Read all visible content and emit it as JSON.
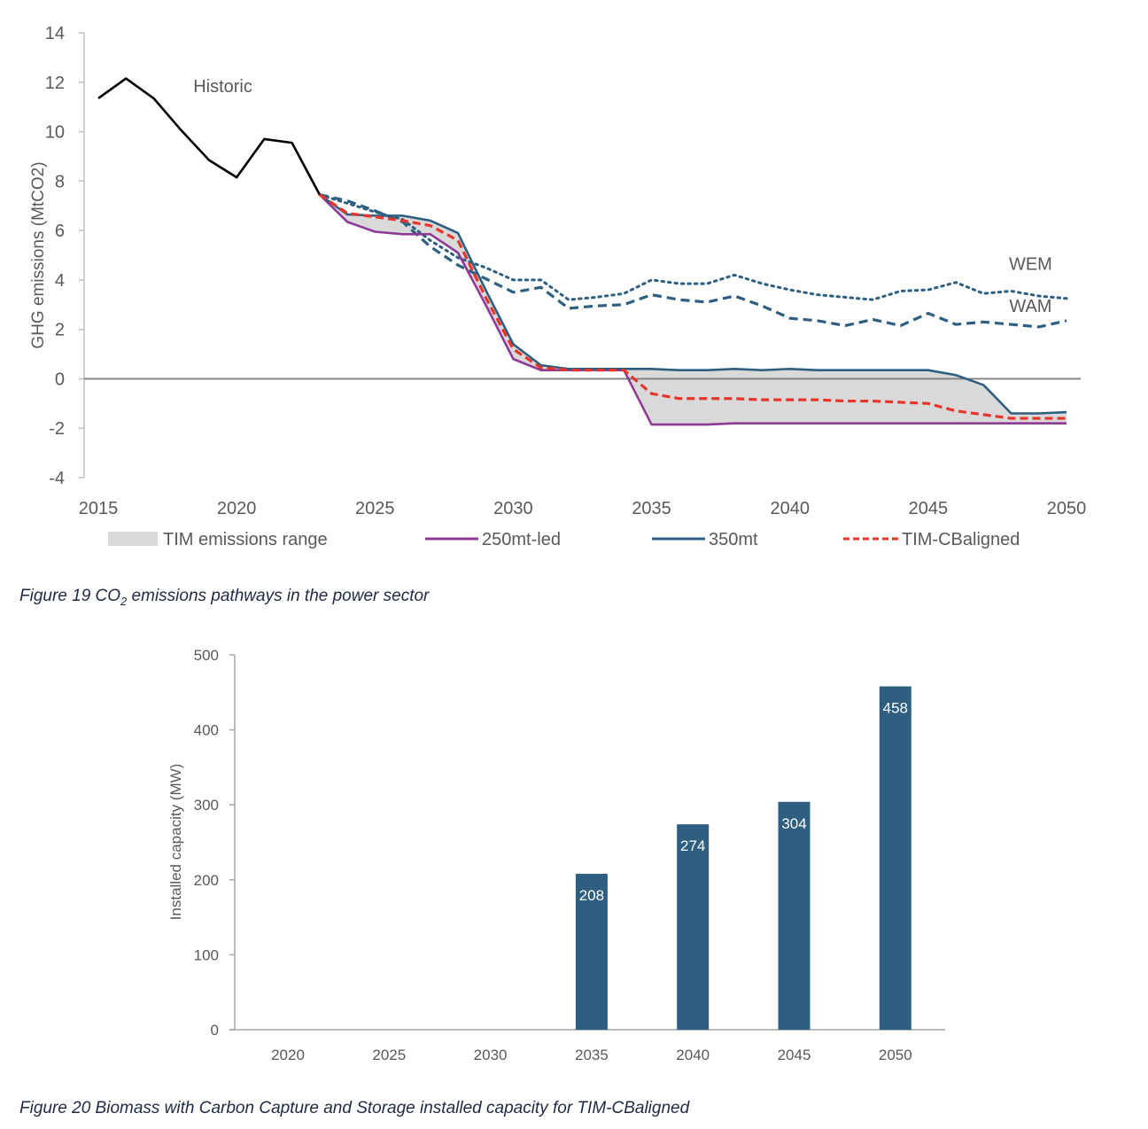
{
  "figure19": {
    "caption_prefix": "Figure 19 CO",
    "caption_sub": "2",
    "caption_suffix": " emissions pathways in the power sector"
  },
  "figure20": {
    "caption": "Figure 20 Biomass with Carbon Capture and Storage installed capacity for TIM-CBaligned"
  },
  "chart_data": [
    {
      "type": "line",
      "title": "",
      "xlabel": "",
      "ylabel": "GHG emissions (MtCO2)",
      "xlim": [
        2015,
        2050
      ],
      "ylim": [
        -4,
        14
      ],
      "x_ticks": [
        2015,
        2020,
        2025,
        2030,
        2035,
        2040,
        2045,
        2050
      ],
      "y_ticks": [
        -4,
        -2,
        0,
        2,
        4,
        6,
        8,
        10,
        12,
        14
      ],
      "grid": false,
      "legend_position": "bottom",
      "annotations": [
        {
          "text": "Historic",
          "x": 2019.5,
          "y": 11.6
        },
        {
          "text": "WEM",
          "x": 2048.7,
          "y": 4.4
        },
        {
          "text": "WAM",
          "x": 2048.7,
          "y": 2.7
        }
      ],
      "colors": {
        "historic": "#000000",
        "range": "#d9d9d9",
        "led250": "#8e3a96",
        "mt350": "#2e5f80",
        "cbaligned": "#e8352a",
        "wem": "#2e5f80",
        "wam": "#2e5f80",
        "axis": "#bfbfbf",
        "zero_line": "#808080",
        "tick_text": "#595959"
      },
      "legend": [
        {
          "key": "range",
          "label": "TIM emissions range",
          "style": "area"
        },
        {
          "key": "led250",
          "label": "250mt-led",
          "style": "solid"
        },
        {
          "key": "mt350",
          "label": "350mt",
          "style": "solid"
        },
        {
          "key": "cbaligned",
          "label": "TIM-CBaligned",
          "style": "dashed"
        }
      ],
      "series": [
        {
          "key": "historic",
          "name": "Historic",
          "style": "solid",
          "x": [
            2015,
            2016,
            2017,
            2018,
            2019,
            2020,
            2021,
            2022,
            2023
          ],
          "values": [
            11.35,
            12.15,
            11.35,
            10.05,
            8.85,
            8.15,
            9.7,
            9.55,
            7.45
          ]
        },
        {
          "key": "led250",
          "name": "250mt-led",
          "style": "solid",
          "x": [
            2023,
            2024,
            2025,
            2026,
            2027,
            2028,
            2029,
            2030,
            2031,
            2032,
            2033,
            2034,
            2035,
            2036,
            2037,
            2038,
            2039,
            2040,
            2041,
            2042,
            2043,
            2044,
            2045,
            2046,
            2047,
            2048,
            2049,
            2050
          ],
          "values": [
            7.45,
            6.35,
            5.95,
            5.85,
            5.85,
            5.1,
            3.0,
            0.8,
            0.35,
            0.35,
            0.35,
            0.35,
            -1.85,
            -1.85,
            -1.85,
            -1.8,
            -1.8,
            -1.8,
            -1.8,
            -1.8,
            -1.8,
            -1.8,
            -1.8,
            -1.8,
            -1.8,
            -1.8,
            -1.8,
            -1.8
          ]
        },
        {
          "key": "mt350",
          "name": "350mt",
          "style": "solid",
          "x": [
            2023,
            2024,
            2025,
            2026,
            2027,
            2028,
            2029,
            2030,
            2031,
            2032,
            2033,
            2034,
            2035,
            2036,
            2037,
            2038,
            2039,
            2040,
            2041,
            2042,
            2043,
            2044,
            2045,
            2046,
            2047,
            2048,
            2049,
            2050
          ],
          "values": [
            7.45,
            6.65,
            6.6,
            6.6,
            6.4,
            5.9,
            3.6,
            1.4,
            0.55,
            0.4,
            0.4,
            0.4,
            0.4,
            0.35,
            0.35,
            0.4,
            0.35,
            0.4,
            0.35,
            0.35,
            0.35,
            0.35,
            0.35,
            0.15,
            -0.25,
            -1.4,
            -1.4,
            -1.35
          ]
        },
        {
          "key": "cbaligned",
          "name": "TIM-CBaligned",
          "style": "dashed",
          "x": [
            2023,
            2024,
            2025,
            2026,
            2027,
            2028,
            2029,
            2030,
            2031,
            2032,
            2033,
            2034,
            2035,
            2036,
            2037,
            2038,
            2039,
            2040,
            2041,
            2042,
            2043,
            2044,
            2045,
            2046,
            2047,
            2048,
            2049,
            2050
          ],
          "values": [
            7.45,
            6.7,
            6.55,
            6.4,
            6.2,
            5.6,
            3.3,
            1.2,
            0.45,
            0.35,
            0.35,
            0.35,
            -0.6,
            -0.8,
            -0.8,
            -0.8,
            -0.85,
            -0.85,
            -0.85,
            -0.9,
            -0.9,
            -0.95,
            -1.0,
            -1.3,
            -1.45,
            -1.6,
            -1.6,
            -1.6
          ]
        },
        {
          "key": "wem",
          "name": "WEM",
          "style": "dotted",
          "x": [
            2023,
            2024,
            2025,
            2026,
            2027,
            2028,
            2029,
            2030,
            2031,
            2032,
            2033,
            2034,
            2035,
            2036,
            2037,
            2038,
            2039,
            2040,
            2041,
            2042,
            2043,
            2044,
            2045,
            2046,
            2047,
            2048,
            2049,
            2050
          ],
          "values": [
            7.45,
            7.1,
            6.75,
            6.45,
            5.6,
            4.9,
            4.5,
            4.0,
            4.0,
            3.2,
            3.3,
            3.45,
            4.0,
            3.85,
            3.85,
            4.2,
            3.85,
            3.6,
            3.4,
            3.3,
            3.2,
            3.55,
            3.6,
            3.9,
            3.45,
            3.55,
            3.35,
            3.25
          ]
        },
        {
          "key": "wam",
          "name": "WAM",
          "style": "dashed",
          "x": [
            2023,
            2024,
            2025,
            2026,
            2027,
            2028,
            2029,
            2030,
            2031,
            2032,
            2033,
            2034,
            2035,
            2036,
            2037,
            2038,
            2039,
            2040,
            2041,
            2042,
            2043,
            2044,
            2045,
            2046,
            2047,
            2048,
            2049,
            2050
          ],
          "values": [
            7.45,
            7.2,
            6.8,
            6.35,
            5.35,
            4.6,
            4.05,
            3.5,
            3.7,
            2.85,
            2.95,
            3.0,
            3.4,
            3.2,
            3.1,
            3.35,
            2.95,
            2.45,
            2.35,
            2.15,
            2.4,
            2.15,
            2.65,
            2.2,
            2.3,
            2.2,
            2.1,
            2.35
          ]
        }
      ]
    },
    {
      "type": "bar",
      "title": "",
      "xlabel": "",
      "ylabel": "Installed capacity (MW)",
      "ylim": [
        0,
        500
      ],
      "y_ticks": [
        0,
        100,
        200,
        300,
        400,
        500
      ],
      "grid": false,
      "categories": [
        "2020",
        "2025",
        "2030",
        "2035",
        "2040",
        "2045",
        "2050"
      ],
      "values": [
        0,
        0,
        0,
        208,
        274,
        304,
        458
      ],
      "data_labels": [
        "",
        "",
        "",
        "208",
        "274",
        "304",
        "458"
      ],
      "bar_color": "#2e5f80",
      "label_color": "#ffffff"
    }
  ]
}
